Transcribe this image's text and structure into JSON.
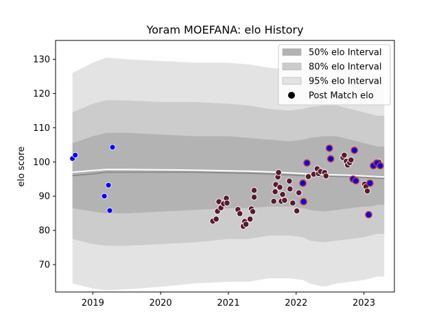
{
  "chart_data": {
    "type": "scatter",
    "title": "Yoram MOEFANA: elo History",
    "xlabel": "",
    "ylabel": "elo score",
    "xlim": [
      2018.45,
      2023.45
    ],
    "ylim": [
      62,
      135.5
    ],
    "xticks": [
      2019,
      2020,
      2021,
      2022,
      2023
    ],
    "xtick_labels": [
      "2019",
      "2020",
      "2021",
      "2022",
      "2023"
    ],
    "yticks": [
      70,
      80,
      90,
      100,
      110,
      120,
      130
    ],
    "grid": false,
    "legend": {
      "position": "top-right",
      "entries": [
        {
          "label": "50% elo Interval",
          "kind": "band",
          "color": "#b3b3b3"
        },
        {
          "label": "80% elo Interval",
          "kind": "band",
          "color": "#cccccc"
        },
        {
          "label": "95% elo Interval",
          "kind": "band",
          "color": "#e3e3e3"
        },
        {
          "label": "Post Match elo",
          "kind": "marker",
          "color": "#000000"
        }
      ]
    },
    "colors": {
      "band95": "#e3e3e3",
      "band80": "#cccccc",
      "band50": "#b3b3b3",
      "median_line": "#8c8c8c",
      "mean_line": "#ffffff",
      "point_blue": "#0000ff",
      "point_dark": "#5a1a2e",
      "point_edge_red": "#c0392b"
    },
    "bands": {
      "x": [
        2018.7,
        2019.0,
        2019.2,
        2019.5,
        2020.0,
        2020.5,
        2021.0,
        2021.3,
        2021.6,
        2021.9,
        2022.1,
        2022.2,
        2022.4,
        2022.6,
        2022.8,
        2023.0,
        2023.1,
        2023.2,
        2023.3
      ],
      "lo95": [
        64.5,
        63.0,
        62.5,
        62.8,
        63.5,
        64.5,
        65.0,
        65.0,
        66.0,
        66.0,
        65.5,
        64.5,
        63.5,
        64.5,
        65.0,
        65.5,
        66.0,
        66.5,
        66.5
      ],
      "hi95": [
        126.0,
        129.0,
        130.5,
        130.0,
        129.5,
        129.0,
        129.0,
        128.5,
        127.5,
        127.0,
        127.5,
        128.0,
        128.5,
        129.0,
        127.5,
        126.0,
        125.5,
        125.0,
        125.0
      ],
      "lo80": [
        77.5,
        76.0,
        75.5,
        75.5,
        76.0,
        76.5,
        77.5,
        77.5,
        78.5,
        78.5,
        78.0,
        77.0,
        76.5,
        77.0,
        77.5,
        78.0,
        78.5,
        79.0,
        79.0
      ],
      "hi80": [
        114.5,
        117.0,
        118.0,
        118.0,
        117.5,
        117.5,
        117.0,
        116.5,
        115.5,
        115.0,
        115.5,
        116.0,
        116.5,
        116.5,
        115.5,
        114.5,
        114.0,
        113.5,
        113.5
      ],
      "lo50": [
        86.5,
        85.5,
        85.0,
        85.0,
        85.5,
        86.0,
        86.5,
        86.5,
        87.0,
        87.0,
        86.5,
        86.0,
        85.5,
        86.0,
        86.5,
        87.0,
        87.0,
        87.5,
        87.5
      ],
      "hi50": [
        105.5,
        107.5,
        108.5,
        108.5,
        108.0,
        107.5,
        107.5,
        107.0,
        106.5,
        106.0,
        106.5,
        107.0,
        107.5,
        107.5,
        106.5,
        105.5,
        105.0,
        104.5,
        104.5
      ],
      "median": [
        96.0,
        96.5,
        97.0,
        97.0,
        97.0,
        97.0,
        96.8,
        96.7,
        96.5,
        96.2,
        96.0,
        96.0,
        95.9,
        95.8,
        95.7,
        95.5,
        95.4,
        95.3,
        95.2
      ],
      "mean": [
        97.0,
        97.5,
        97.8,
        97.8,
        97.7,
        97.6,
        97.4,
        97.3,
        97.1,
        96.8,
        96.6,
        96.4,
        96.3,
        96.2,
        96.1,
        95.9,
        95.8,
        95.7,
        95.6
      ]
    },
    "series": [
      {
        "name": "Post Match elo",
        "style": "blue",
        "points": [
          [
            2018.7,
            101.0
          ],
          [
            2018.74,
            102.0
          ],
          [
            2019.17,
            90.0
          ],
          [
            2019.23,
            93.2
          ],
          [
            2019.25,
            85.8
          ],
          [
            2019.29,
            104.3
          ]
        ]
      },
      {
        "style": "dark",
        "points": [
          [
            2020.77,
            82.7
          ],
          [
            2020.82,
            83.3
          ],
          [
            2020.84,
            85.6
          ],
          [
            2020.86,
            88.4
          ],
          [
            2020.89,
            86.6
          ],
          [
            2020.93,
            87.8
          ],
          [
            2020.97,
            89.4
          ],
          [
            2020.98,
            88.0
          ],
          [
            2021.14,
            86.1
          ],
          [
            2021.17,
            84.9
          ],
          [
            2021.22,
            81.2
          ],
          [
            2021.24,
            82.6
          ],
          [
            2021.26,
            81.8
          ],
          [
            2021.32,
            83.3
          ],
          [
            2021.34,
            86.3
          ],
          [
            2021.36,
            85.5
          ],
          [
            2021.38,
            91.7
          ],
          [
            2021.38,
            89.7
          ],
          [
            2021.67,
            88.5
          ],
          [
            2021.69,
            91.3
          ],
          [
            2021.7,
            93.4
          ],
          [
            2021.73,
            95.6
          ],
          [
            2021.74,
            96.9
          ],
          [
            2021.76,
            92.6
          ],
          [
            2021.78,
            88.5
          ],
          [
            2021.8,
            90.5
          ],
          [
            2021.83,
            88.8
          ],
          [
            2021.9,
            94.4
          ],
          [
            2021.91,
            92.1
          ],
          [
            2021.95,
            88.0
          ],
          [
            2022.01,
            85.7
          ],
          [
            2022.04,
            91.0
          ],
          [
            2022.18,
            95.7
          ],
          [
            2022.26,
            96.4
          ],
          [
            2022.31,
            98.0
          ],
          [
            2022.33,
            96.6
          ],
          [
            2022.36,
            97.2
          ],
          [
            2022.42,
            96.9
          ],
          [
            2022.44,
            95.9
          ],
          [
            2022.69,
            101.3
          ],
          [
            2022.71,
            102.0
          ],
          [
            2022.74,
            100.2
          ],
          [
            2022.76,
            99.1
          ],
          [
            2022.79,
            99.8
          ],
          [
            2022.81,
            100.6
          ],
          [
            2023.01,
            93.5
          ],
          [
            2023.03,
            92.8
          ],
          [
            2023.05,
            91.5
          ],
          [
            2023.22,
            100.0
          ]
        ]
      },
      {
        "style": "dark-red-edge",
        "points": [
          [
            2022.1,
            93.8
          ],
          [
            2022.11,
            88.4
          ],
          [
            2022.16,
            99.7
          ],
          [
            2022.49,
            104.0
          ],
          [
            2022.51,
            100.9
          ],
          [
            2022.84,
            95.0
          ],
          [
            2022.86,
            103.4
          ],
          [
            2022.88,
            94.5
          ],
          [
            2023.07,
            84.6
          ],
          [
            2023.09,
            93.8
          ],
          [
            2023.14,
            98.9
          ],
          [
            2023.19,
            99.7
          ],
          [
            2023.24,
            98.9
          ]
        ]
      }
    ]
  }
}
